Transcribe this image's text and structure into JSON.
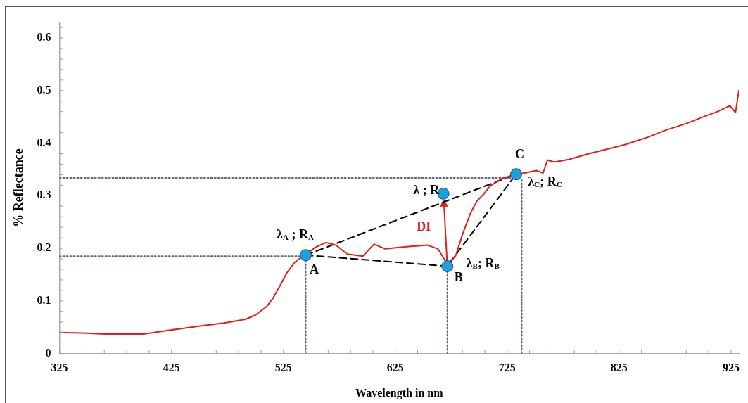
{
  "chart_data": {
    "type": "line",
    "xlabel": "Wavelength in nm",
    "ylabel": "% Reflectance",
    "xlim": [
      325,
      932
    ],
    "ylim": [
      0,
      0.63
    ],
    "xticks": [
      325,
      {
        "value": 345,
        "label": null
      },
      {
        "value": 365,
        "label": null
      },
      {
        "value": 385,
        "label": null
      },
      {
        "value": 405,
        "label": null
      },
      425,
      {
        "value": 445,
        "label": null
      },
      {
        "value": 465,
        "label": null
      },
      {
        "value": 485,
        "label": null
      },
      {
        "value": 505,
        "label": null
      },
      525,
      {
        "value": 545,
        "label": null
      },
      {
        "value": 565,
        "label": null
      },
      {
        "value": 585,
        "label": null
      },
      {
        "value": 605,
        "label": null
      },
      625,
      {
        "value": 645,
        "label": null
      },
      {
        "value": 665,
        "label": null
      },
      {
        "value": 685,
        "label": null
      },
      {
        "value": 705,
        "label": null
      },
      725,
      {
        "value": 745,
        "label": null
      },
      {
        "value": 765,
        "label": null
      },
      {
        "value": 785,
        "label": null
      },
      {
        "value": 805,
        "label": null
      },
      825,
      {
        "value": 845,
        "label": null
      },
      {
        "value": 865,
        "label": null
      },
      {
        "value": 885,
        "label": null
      },
      {
        "value": 905,
        "label": null
      },
      925
    ],
    "yticks": [
      0,
      {
        "value": 0.02,
        "label": null
      },
      {
        "value": 0.04,
        "label": null
      },
      {
        "value": 0.06,
        "label": null
      },
      {
        "value": 0.08,
        "label": null
      },
      0.1,
      {
        "value": 0.12,
        "label": null
      },
      {
        "value": 0.14,
        "label": null
      },
      {
        "value": 0.16,
        "label": null
      },
      {
        "value": 0.18,
        "label": null
      },
      0.2,
      {
        "value": 0.22,
        "label": null
      },
      {
        "value": 0.24,
        "label": null
      },
      {
        "value": 0.26,
        "label": null
      },
      {
        "value": 0.28,
        "label": null
      },
      0.3,
      {
        "value": 0.32,
        "label": null
      },
      {
        "value": 0.34,
        "label": null
      },
      {
        "value": 0.36,
        "label": null
      },
      {
        "value": 0.38,
        "label": null
      },
      0.4,
      {
        "value": 0.42,
        "label": null
      },
      {
        "value": 0.44,
        "label": null
      },
      {
        "value": 0.46,
        "label": null
      },
      {
        "value": 0.48,
        "label": null
      },
      0.5,
      {
        "value": 0.52,
        "label": null
      },
      {
        "value": 0.54,
        "label": null
      },
      {
        "value": 0.56,
        "label": null
      },
      {
        "value": 0.58,
        "label": null
      },
      0.6,
      {
        "value": 0.62,
        "label": null
      }
    ],
    "series": [
      {
        "color": "#e0201b",
        "marker": "none",
        "line_style": "solid",
        "x": [
          325,
          346,
          365,
          390,
          400,
          422,
          453,
          472,
          491,
          500,
          510,
          516,
          522,
          528,
          535,
          541,
          545,
          553.5,
          563,
          572,
          582,
          596,
          606,
          616,
          635,
          654,
          663,
          671.5,
          679,
          685,
          692,
          698,
          704,
          710,
          720,
          729,
          742,
          751,
          757,
          761,
          767,
          780,
          798,
          817,
          830,
          849,
          867,
          886,
          899,
          914,
          924,
          929,
          932
        ],
        "values": [
          0.04,
          0.039,
          0.037,
          0.037,
          0.037,
          0.044,
          0.053,
          0.058,
          0.065,
          0.073,
          0.089,
          0.106,
          0.129,
          0.153,
          0.173,
          0.183,
          0.187,
          0.202,
          0.211,
          0.206,
          0.189,
          0.185,
          0.208,
          0.199,
          0.203,
          0.206,
          0.199,
          0.17,
          0.186,
          0.226,
          0.266,
          0.29,
          0.303,
          0.319,
          0.332,
          0.339,
          0.344,
          0.348,
          0.343,
          0.368,
          0.364,
          0.369,
          0.38,
          0.39,
          0.397,
          0.41,
          0.425,
          0.438,
          0.449,
          0.461,
          0.471,
          0.458,
          0.5
        ]
      },
      {
        "type": "line",
        "color": "#5a6a80",
        "marker": "none",
        "line_style": "dotted",
        "x": [
          325,
          545
        ],
        "values": [
          0.185,
          0.185
        ]
      },
      {
        "type": "line",
        "color": "#5a6a80",
        "marker": "none",
        "line_style": "dotted",
        "x": [
          545,
          545
        ],
        "values": [
          0,
          0.185
        ]
      },
      {
        "type": "line",
        "color": "#5a6a80",
        "marker": "none",
        "line_style": "dotted",
        "x": [
          671.5,
          671.5
        ],
        "values": [
          0,
          0.166
        ]
      },
      {
        "type": "line",
        "color": "#5a6a80",
        "marker": "none",
        "line_style": "dotted",
        "x": [
          325,
          728
        ],
        "values": [
          0.334,
          0.334
        ]
      },
      {
        "type": "line",
        "color": "#5a6a80",
        "marker": "none",
        "line_style": "dotted",
        "x": [
          738,
          738
        ],
        "values": [
          0,
          0.334
        ]
      },
      {
        "type": "line",
        "color": "#000000",
        "marker": "none",
        "line_style": "dashed",
        "x": [
          545,
          733
        ],
        "values": [
          0.187,
          0.341
        ]
      },
      {
        "type": "line",
        "color": "#000000",
        "marker": "none",
        "line_style": "dashed",
        "x": [
          545,
          671.5,
          733
        ],
        "values": [
          0.187,
          0.166,
          0.341
        ]
      },
      {
        "color": "#e0201b",
        "marker": "triangle",
        "line_style": "solid",
        "x": [
          671.5,
          668.5
        ],
        "values": [
          0.166,
          0.284
        ]
      },
      {
        "type": "scatter",
        "color": "#1ca0e0",
        "marker": "circle",
        "x": [
          545,
          671.5,
          733,
          668
        ],
        "values": [
          0.187,
          0.166,
          0.341,
          0.304
        ]
      }
    ],
    "annotations": [
      {
        "text": "λ$_{A}$ ; R$_{A}$",
        "x": 545,
        "y": 0.187
      },
      {
        "text": "A",
        "x": 545,
        "y": 0.187
      },
      {
        "text": "λ ; R",
        "x": 668,
        "y": 0.304
      },
      {
        "text": "DI",
        "x": 668,
        "y": 0.24
      },
      {
        "text": "B",
        "x": 671.5,
        "y": 0.166
      },
      {
        "text": "λ$_{B}$; R$_{B}$",
        "x": 671.5,
        "y": 0.166
      },
      {
        "text": "C",
        "x": 733,
        "y": 0.341
      },
      {
        "text": "λ$_{C}$; R$_{C}$",
        "x": 733,
        "y": 0.341
      }
    ]
  }
}
